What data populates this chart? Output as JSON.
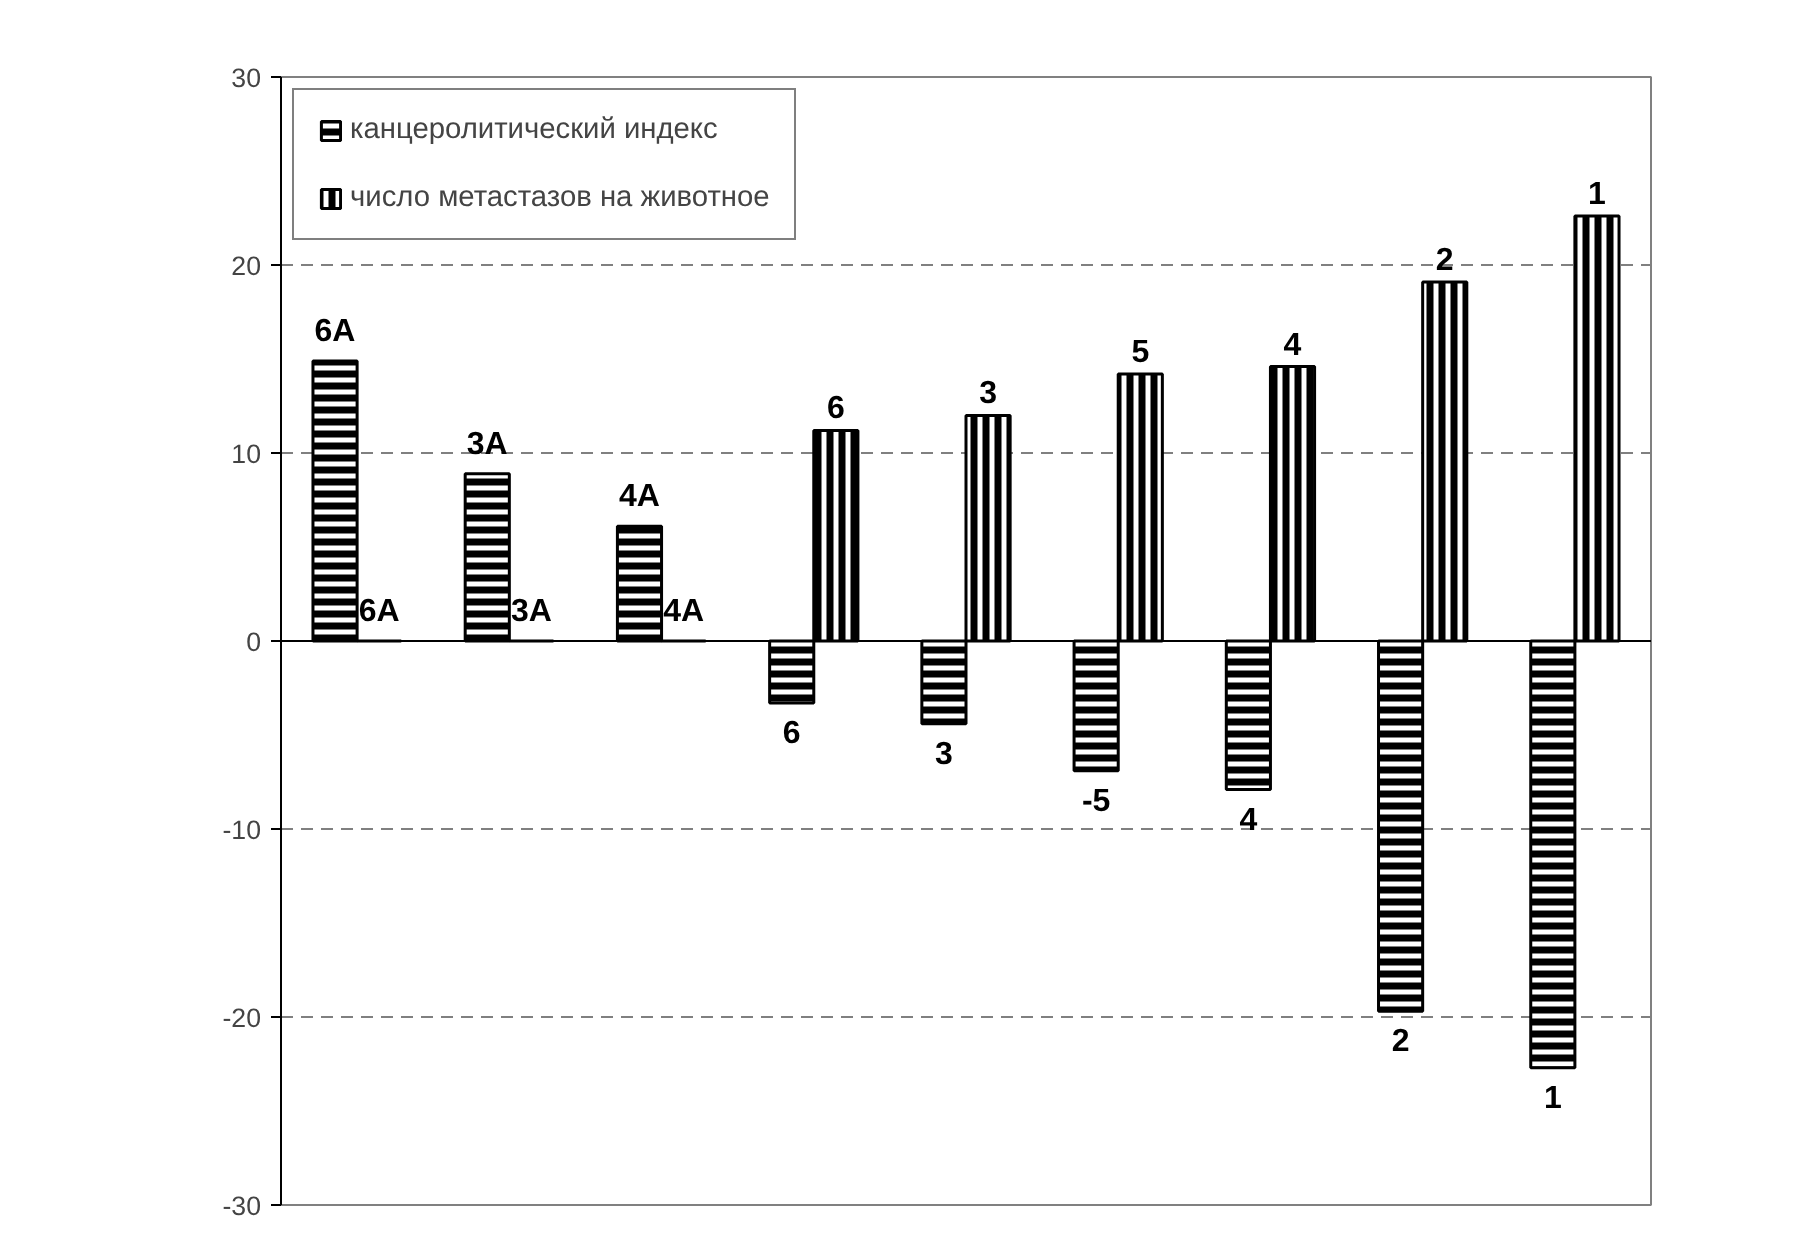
{
  "chart_data": {
    "type": "bar",
    "categories": [
      null,
      null,
      null,
      null,
      null,
      null,
      null,
      null,
      null
    ],
    "series": [
      {
        "name": "канцеролитический индекс",
        "color": "#000000",
        "values": [
          14.9,
          8.9,
          6.1,
          -3.3,
          -4.4,
          -6.9,
          -7.9,
          -19.7,
          -22.7
        ]
      },
      {
        "name": "число метастазов на животное",
        "color": "#000000",
        "values": [
          0,
          0,
          0,
          11.2,
          12.0,
          14.2,
          14.6,
          19.1,
          22.6
        ]
      }
    ],
    "annotations": [
      {
        "text": "6A",
        "y": 14.9
      },
      {
        "text": "3A",
        "y": 8.9
      },
      {
        "text": "4A",
        "y": 6.1
      },
      {
        "text": "6",
        "y": -3.3
      },
      {
        "text": "3",
        "y": -4.4
      },
      {
        "text": "-5",
        "y": -6.9
      },
      {
        "text": "4",
        "y": -7.9
      },
      {
        "text": "2",
        "y": -19.7
      },
      {
        "text": "1",
        "y": -22.7
      },
      {
        "text": "6A",
        "y": 0
      },
      {
        "text": "3A",
        "y": 0
      },
      {
        "text": "4A",
        "y": 0
      },
      {
        "text": "6",
        "y": 11.2
      },
      {
        "text": "3",
        "y": 12.0
      },
      {
        "text": "5",
        "y": 14.2
      },
      {
        "text": "4",
        "y": 14.6
      },
      {
        "text": "2",
        "y": 19.1
      },
      {
        "text": "1",
        "y": 22.6
      }
    ],
    "ylim": [
      -30,
      30
    ],
    "yticks": [
      -30,
      -20,
      -10,
      0,
      10,
      20,
      30
    ],
    "grid": "y",
    "legend": "top left"
  }
}
